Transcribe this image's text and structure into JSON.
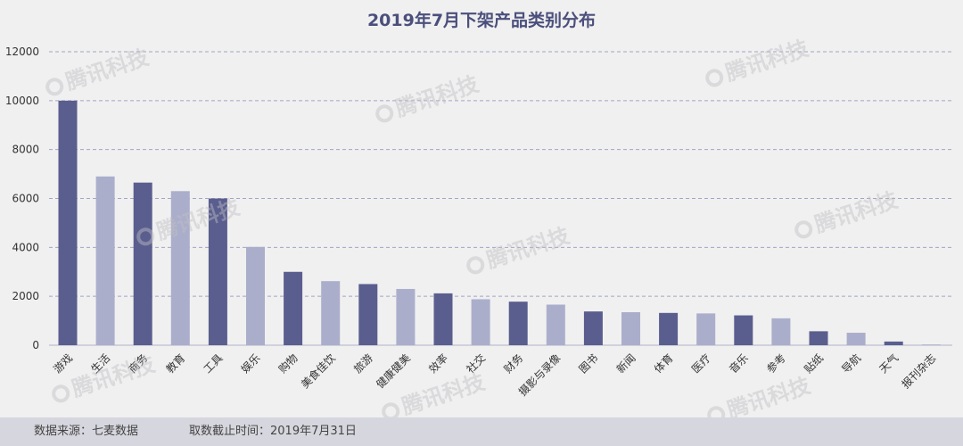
{
  "chart_data": {
    "type": "bar",
    "title": "2019年7月下架产品类别分布",
    "xlabel": "",
    "ylabel": "",
    "ylim": [
      0,
      12000
    ],
    "yticks": [
      0,
      2000,
      4000,
      6000,
      8000,
      10000,
      12000
    ],
    "grid": true,
    "categories": [
      "游戏",
      "生活",
      "商务",
      "教育",
      "工具",
      "娱乐",
      "购物",
      "美食佳饮",
      "旅游",
      "健康健美",
      "效率",
      "社交",
      "财务",
      "摄影与录像",
      "图书",
      "新闻",
      "体育",
      "医疗",
      "音乐",
      "参考",
      "贴纸",
      "导航",
      "天气",
      "报刊杂志"
    ],
    "values": [
      10000,
      6900,
      6650,
      6300,
      6000,
      4020,
      3000,
      2620,
      2500,
      2300,
      2120,
      1880,
      1780,
      1660,
      1380,
      1350,
      1320,
      1300,
      1220,
      1100,
      570,
      510,
      150,
      30
    ],
    "colors": {
      "dark": "#5a5e8e",
      "light": "#abaecb",
      "grid": "#a3a5c7",
      "axis_text": "#333333",
      "title": "#4b4f7c"
    }
  },
  "footer": {
    "source": "数据来源：七麦数据",
    "cutoff": "取数截止时间：2019年7月31日"
  },
  "watermark": "腾讯科技"
}
